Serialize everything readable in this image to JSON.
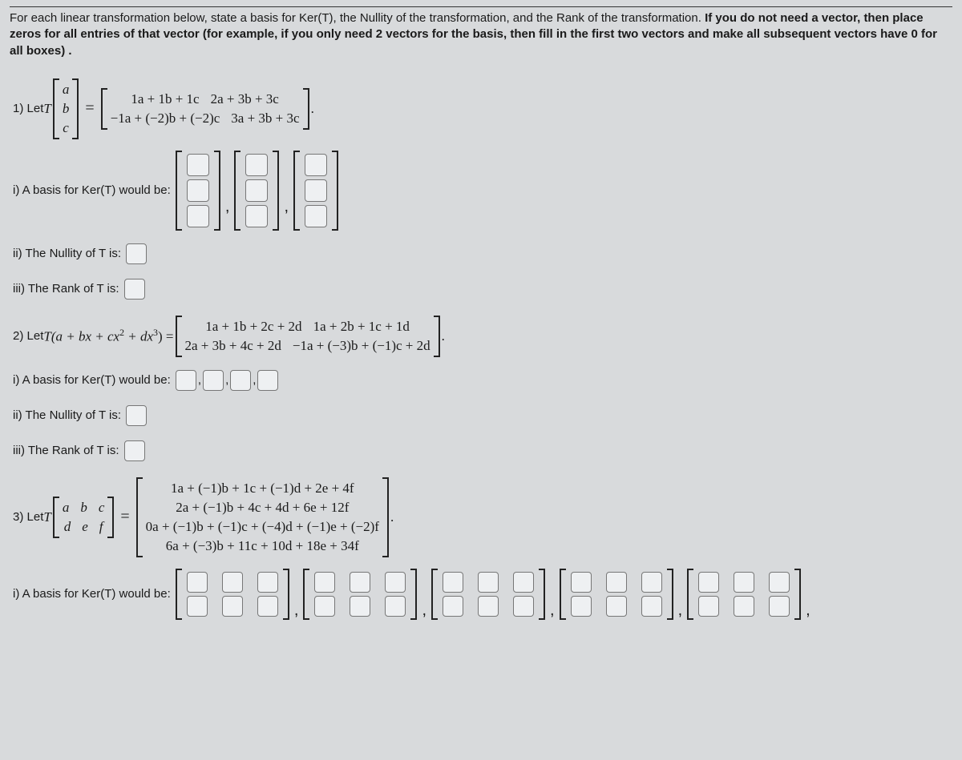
{
  "instructions": {
    "part1": "For each linear transformation below, state a basis for Ker(T), the Nullity of the transformation, and the Rank of the transformation. ",
    "bold1": "If you do not need a vector, then place zeros for all entries of that vector (for example, if you only need 2 vectors for the basis, then fill in the first two vectors and make all subsequent vectors have 0 for all boxes) ."
  },
  "p1": {
    "label": "1) Let ",
    "T": "T",
    "vec": [
      "a",
      "b",
      "c"
    ],
    "matrix": [
      [
        "1a + 1b + 1c",
        "2a + 3b + 3c"
      ],
      [
        "−1a + (−2)b + (−2)c",
        "3a + 3b + 3c"
      ]
    ],
    "basis_label": "i) A basis for Ker(T) would be:",
    "nullity_label": "ii) The Nullity of T is:",
    "rank_label": "iii) The Rank of T is:"
  },
  "p2": {
    "label": "2) Let ",
    "expr": "T(a + bx + cx",
    "expr2": " + dx",
    "expr3": ") =",
    "matrix": [
      [
        "1a + 1b + 2c + 2d",
        "1a + 2b + 1c + 1d"
      ],
      [
        "2a + 3b + 4c + 2d",
        "−1a + (−3)b + (−1)c + 2d"
      ]
    ],
    "basis_label": "i) A basis for Ker(T) would be:",
    "nullity_label": "ii) The Nullity of T is:",
    "rank_label": "iii) The Rank of T is:"
  },
  "p3": {
    "label": "3) Let ",
    "T": "T",
    "vec": [
      [
        "a",
        "b",
        "c"
      ],
      [
        "d",
        "e",
        "f"
      ]
    ],
    "matrix": [
      "1a + (−1)b + 1c + (−1)d + 2e + 4f",
      "2a + (−1)b + 4c + 4d + 6e + 12f",
      "0a + (−1)b + (−1)c + (−4)d + (−1)e + (−2)f",
      "6a + (−3)b + 11c + 10d + 18e + 34f"
    ],
    "basis_label": "i) A basis for Ker(T) would be:"
  },
  "colors": {
    "bg": "#d8dadc",
    "text": "#1a1a1a",
    "input_bg": "#eef0f2",
    "input_border": "#777"
  }
}
